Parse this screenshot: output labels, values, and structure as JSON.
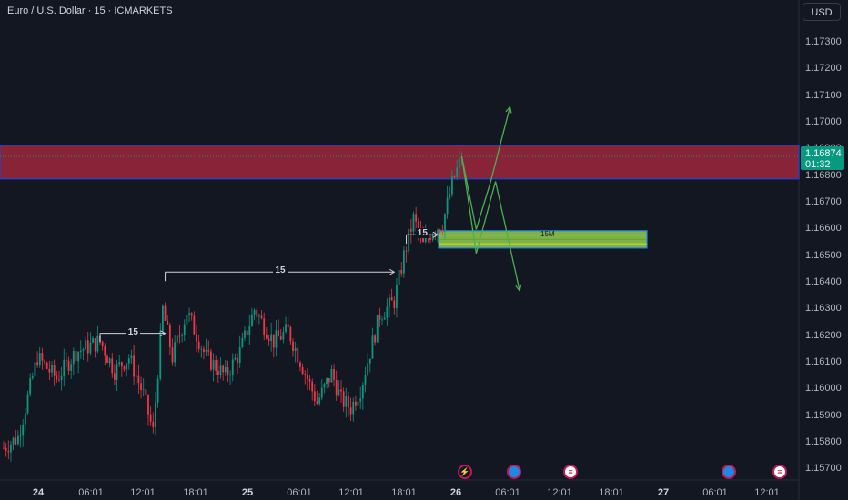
{
  "header": {
    "title": "Euro / U.S. Dollar · 15 · ICMARKETS"
  },
  "currency_button": "USD",
  "last_price": {
    "value": "1.16874",
    "countdown": "01:32",
    "color": "#089981"
  },
  "colors": {
    "up": "#089981",
    "down": "#f23645",
    "background": "#131722",
    "supply_zone": "#b2283f",
    "demand_zone": "#8bc34a",
    "projection": "#4caf50"
  },
  "chart_data": {
    "type": "candlestick",
    "symbol": "EURUSD",
    "timeframe": "15",
    "y_ticks": [
      1.173,
      1.172,
      1.171,
      1.17,
      1.169,
      1.168,
      1.167,
      1.166,
      1.165,
      1.164,
      1.163,
      1.162,
      1.161,
      1.16,
      1.159,
      1.158,
      1.157
    ],
    "y_tick_labels": [
      "1.17300",
      "1.17200",
      "1.17100",
      "1.17000",
      "1.16900",
      "1.16800",
      "1.16700",
      "1.16600",
      "1.16500",
      "1.16400",
      "1.16300",
      "1.16200",
      "1.16100",
      "1.16000",
      "1.15900",
      "1.15800",
      "1.15700"
    ],
    "ylim": [
      1.1568,
      1.1742
    ],
    "x_ticks": [
      {
        "label": "24",
        "bold": true
      },
      {
        "label": "06:01",
        "bold": false
      },
      {
        "label": "12:01",
        "bold": false
      },
      {
        "label": "18:01",
        "bold": false
      },
      {
        "label": "25",
        "bold": true
      },
      {
        "label": "06:01",
        "bold": false
      },
      {
        "label": "12:01",
        "bold": false
      },
      {
        "label": "18:01",
        "bold": false
      },
      {
        "label": "26",
        "bold": true
      },
      {
        "label": "06:01",
        "bold": false
      },
      {
        "label": "12:01",
        "bold": false
      },
      {
        "label": "18:01",
        "bold": false
      },
      {
        "label": "27",
        "bold": true
      },
      {
        "label": "06:01",
        "bold": false
      },
      {
        "label": "12:01",
        "bold": false
      }
    ],
    "path_anchors": [
      {
        "bar": 0,
        "price": 1.1578
      },
      {
        "bar": 6,
        "price": 1.1582
      },
      {
        "bar": 14,
        "price": 1.1612
      },
      {
        "bar": 22,
        "price": 1.1604
      },
      {
        "bar": 30,
        "price": 1.1614
      },
      {
        "bar": 40,
        "price": 1.1618
      },
      {
        "bar": 46,
        "price": 1.1607
      },
      {
        "bar": 52,
        "price": 1.1612
      },
      {
        "bar": 58,
        "price": 1.1598
      },
      {
        "bar": 62,
        "price": 1.1584
      },
      {
        "bar": 66,
        "price": 1.163
      },
      {
        "bar": 70,
        "price": 1.1612
      },
      {
        "bar": 76,
        "price": 1.1629
      },
      {
        "bar": 84,
        "price": 1.1612
      },
      {
        "bar": 92,
        "price": 1.1605
      },
      {
        "bar": 98,
        "price": 1.1614
      },
      {
        "bar": 104,
        "price": 1.163
      },
      {
        "bar": 112,
        "price": 1.1618
      },
      {
        "bar": 118,
        "price": 1.1622
      },
      {
        "bar": 126,
        "price": 1.1604
      },
      {
        "bar": 130,
        "price": 1.1595
      },
      {
        "bar": 136,
        "price": 1.1606
      },
      {
        "bar": 140,
        "price": 1.1596
      },
      {
        "bar": 144,
        "price": 1.1593
      },
      {
        "bar": 148,
        "price": 1.16
      },
      {
        "bar": 156,
        "price": 1.1628
      },
      {
        "bar": 162,
        "price": 1.1633
      },
      {
        "bar": 166,
        "price": 1.165
      },
      {
        "bar": 170,
        "price": 1.1664
      },
      {
        "bar": 174,
        "price": 1.1654
      },
      {
        "bar": 178,
        "price": 1.166
      },
      {
        "bar": 182,
        "price": 1.1662
      },
      {
        "bar": 186,
        "price": 1.1677
      },
      {
        "bar": 190,
        "price": 1.16874
      }
    ],
    "zones": [
      {
        "name": "supply",
        "from": 1.16915,
        "to": 1.1679
      },
      {
        "name": "demand",
        "from": 1.16595,
        "to": 1.1653,
        "label": "15M"
      }
    ],
    "structure_breaks": [
      {
        "label": "15",
        "level": 1.1621,
        "from_bar": 40,
        "to_bar": 67
      },
      {
        "label": "15",
        "level": 1.1644,
        "from_bar": 67,
        "to_bar": 162
      },
      {
        "label": "15",
        "level": 1.1658,
        "from_bar": 167,
        "to_bar": 180
      }
    ],
    "projections": [
      [
        {
          "bar": 190,
          "price": 1.16874
        },
        {
          "bar": 196,
          "price": 1.166
        },
        {
          "bar": 202,
          "price": 1.1678
        },
        {
          "bar": 210,
          "price": 1.1706
        }
      ],
      [
        {
          "bar": 190,
          "price": 1.16874
        },
        {
          "bar": 196,
          "price": 1.1651
        },
        {
          "bar": 204,
          "price": 1.1678
        },
        {
          "bar": 214,
          "price": 1.1637
        }
      ]
    ]
  }
}
